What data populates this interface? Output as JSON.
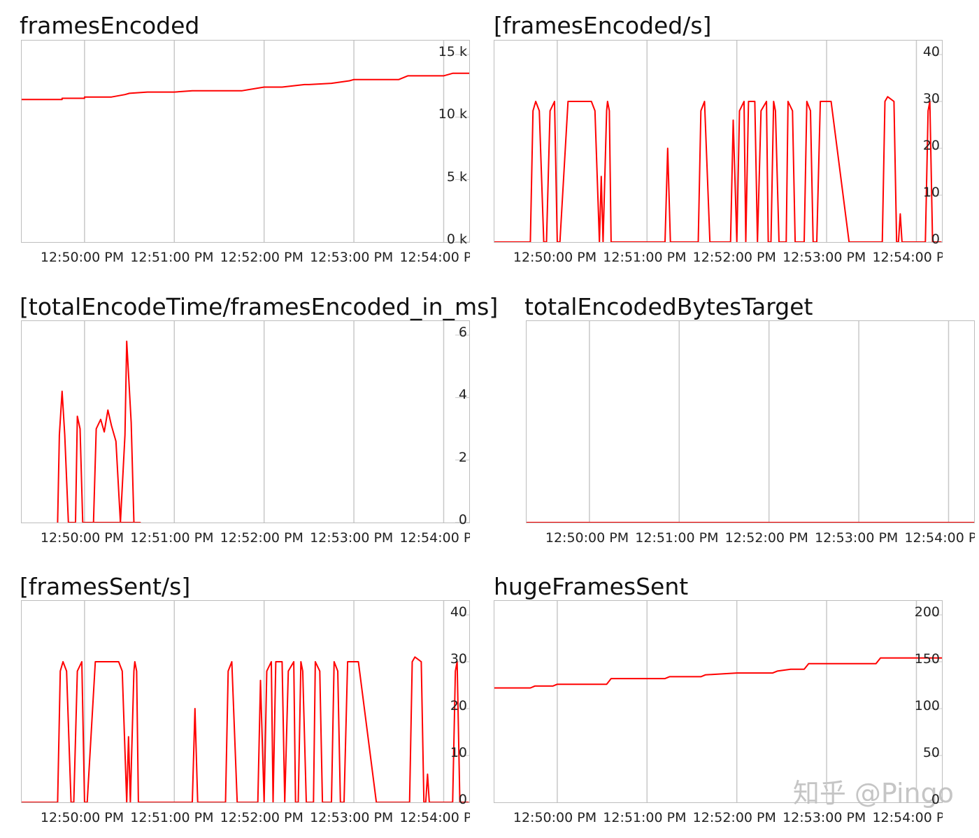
{
  "watermark": "知乎 @Pingo",
  "chart_data": [
    {
      "type": "line",
      "title": "framesEncoded",
      "xticks": [
        "12:50:00 PM",
        "12:51:00 PM",
        "12:52:00 PM",
        "12:53:00 PM",
        "12:54:00 P"
      ],
      "yticks": [
        "15 k",
        "10 k",
        "5 k",
        "0 k"
      ],
      "ytick_values": [
        15000,
        10000,
        5000,
        0
      ],
      "ylim": [
        0,
        15000
      ],
      "color": "#ff0000",
      "series": [
        {
          "x": [
            -0.7,
            -0.25,
            -0.25,
            0.0,
            0.0,
            0.3,
            0.45,
            0.5,
            0.7,
            1.0,
            1.2,
            1.25,
            1.75,
            2.0,
            2.2,
            2.45,
            2.5,
            2.75,
            2.95,
            3.0,
            3.5,
            3.6,
            4.0,
            4.1,
            4.3
          ],
          "values": [
            11400,
            11400,
            11500,
            11500,
            11600,
            11600,
            11800,
            11900,
            12000,
            12000,
            12100,
            12100,
            12100,
            12400,
            12400,
            12600,
            12600,
            12700,
            12900,
            13000,
            13000,
            13300,
            13300,
            13500,
            13500
          ]
        }
      ]
    },
    {
      "type": "line",
      "title": "[framesEncoded/s]",
      "xticks": [
        "12:50:00 PM",
        "12:51:00 PM",
        "12:52:00 PM",
        "12:53:00 PM",
        "12:54:00 P"
      ],
      "yticks": [
        "40",
        "30",
        "20",
        "10",
        "0"
      ],
      "ytick_values": [
        40,
        30,
        20,
        10,
        0
      ],
      "ylim": [
        0,
        40
      ],
      "color": "#ff0000",
      "series": [
        {
          "x": [
            -0.7,
            -0.3,
            -0.27,
            -0.24,
            -0.2,
            -0.15,
            -0.12,
            -0.08,
            -0.03,
            0.0,
            0.03,
            0.12,
            0.15,
            0.38,
            0.42,
            0.47,
            0.49,
            0.51,
            0.55,
            0.56,
            0.58,
            0.6,
            0.63,
            1.2,
            1.23,
            1.26,
            1.3,
            1.57,
            1.6,
            1.64,
            1.7,
            1.93,
            1.96,
            2.0,
            2.03,
            2.08,
            2.1,
            2.13,
            2.2,
            2.23,
            2.27,
            2.33,
            2.35,
            2.38,
            2.41,
            2.43,
            2.47,
            2.55,
            2.57,
            2.62,
            2.65,
            2.75,
            2.78,
            2.82,
            2.85,
            2.89,
            2.93,
            3.0,
            3.05,
            3.25,
            3.3,
            3.62,
            3.65,
            3.68,
            3.75,
            3.78,
            3.8,
            3.82,
            3.84,
            3.88,
            4.0,
            4.1,
            4.13,
            4.15,
            4.18,
            4.25,
            4.28
          ],
          "values": [
            0,
            0,
            28,
            30,
            28,
            0,
            0,
            28,
            30,
            0,
            0,
            30,
            30,
            30,
            28,
            0,
            14,
            0,
            28,
            30,
            28,
            0,
            0,
            0,
            20,
            0,
            0,
            0,
            28,
            30,
            0,
            0,
            26,
            0,
            28,
            30,
            0,
            30,
            30,
            0,
            28,
            30,
            0,
            0,
            30,
            28,
            0,
            0,
            30,
            28,
            0,
            0,
            30,
            28,
            0,
            0,
            30,
            30,
            30,
            0,
            0,
            0,
            30,
            31,
            30,
            0,
            0,
            6,
            0,
            0,
            0,
            0,
            28,
            30,
            0,
            0,
            0
          ]
        }
      ]
    },
    {
      "type": "line",
      "title": "[totalEncodeTime/framesEncoded_in_ms]",
      "xticks": [
        "12:50:00 PM",
        "12:51:00 PM",
        "12:52:00 PM",
        "12:53:00 PM",
        "12:54:00 P"
      ],
      "yticks": [
        "6",
        "4",
        "2",
        "0"
      ],
      "ytick_values": [
        6,
        4,
        2,
        0
      ],
      "ylim": [
        0,
        6
      ],
      "color": "#ff0000",
      "series": [
        {
          "x": [
            -0.3,
            -0.28,
            -0.25,
            -0.22,
            -0.18,
            -0.1,
            -0.08,
            -0.05,
            -0.02,
            0.1,
            0.13,
            0.18,
            0.22,
            0.26,
            0.3,
            0.35,
            0.4,
            0.45,
            0.47,
            0.52,
            0.55,
            0.58,
            0.62,
            0.0,
            0.0
          ],
          "values": [
            0,
            2.8,
            4.2,
            2.8,
            0,
            0,
            3.4,
            3.0,
            0,
            0,
            3.0,
            3.3,
            2.9,
            3.6,
            3.1,
            2.6,
            0,
            2.8,
            5.8,
            3.2,
            0,
            0,
            0,
            0,
            0
          ]
        }
      ]
    },
    {
      "type": "line",
      "title": "totalEncodedBytesTarget",
      "xticks": [
        "12:50:00 PM",
        "12:51:00 PM",
        "12:52:00 PM",
        "12:53:00 PM",
        "12:54:00 P"
      ],
      "yticks": [],
      "ytick_values": [],
      "ylim": [
        0,
        1
      ],
      "color": "#ff0000",
      "series": [
        {
          "x": [
            -0.7,
            4.3
          ],
          "values": [
            0,
            0
          ]
        }
      ]
    },
    {
      "type": "line",
      "title": "[framesSent/s]",
      "xticks": [
        "12:50:00 PM",
        "12:51:00 PM",
        "12:52:00 PM",
        "12:53:00 PM",
        "12:54:00 P"
      ],
      "yticks": [
        "40",
        "30",
        "20",
        "10",
        "0"
      ],
      "ytick_values": [
        40,
        30,
        20,
        10,
        0
      ],
      "ylim": [
        0,
        40
      ],
      "color": "#ff0000",
      "series": [
        {
          "x": [
            -0.7,
            -0.3,
            -0.27,
            -0.24,
            -0.2,
            -0.15,
            -0.12,
            -0.08,
            -0.03,
            0.0,
            0.03,
            0.12,
            0.15,
            0.38,
            0.42,
            0.47,
            0.49,
            0.51,
            0.55,
            0.56,
            0.58,
            0.6,
            0.63,
            1.2,
            1.23,
            1.26,
            1.3,
            1.57,
            1.6,
            1.64,
            1.7,
            1.93,
            1.96,
            2.0,
            2.03,
            2.08,
            2.1,
            2.13,
            2.2,
            2.23,
            2.27,
            2.33,
            2.35,
            2.38,
            2.41,
            2.43,
            2.47,
            2.55,
            2.57,
            2.62,
            2.65,
            2.75,
            2.78,
            2.82,
            2.85,
            2.89,
            2.93,
            3.0,
            3.05,
            3.25,
            3.3,
            3.62,
            3.65,
            3.68,
            3.75,
            3.78,
            3.8,
            3.82,
            3.84,
            3.88,
            4.0,
            4.1,
            4.13,
            4.15,
            4.18,
            4.25,
            4.28
          ],
          "values": [
            0,
            0,
            28,
            30,
            28,
            0,
            0,
            28,
            30,
            0,
            0,
            30,
            30,
            30,
            28,
            0,
            14,
            0,
            28,
            30,
            28,
            0,
            0,
            0,
            20,
            0,
            0,
            0,
            28,
            30,
            0,
            0,
            26,
            0,
            28,
            30,
            0,
            30,
            30,
            0,
            28,
            30,
            0,
            0,
            30,
            28,
            0,
            0,
            30,
            28,
            0,
            0,
            30,
            28,
            0,
            0,
            30,
            30,
            30,
            0,
            0,
            0,
            30,
            31,
            30,
            0,
            0,
            6,
            0,
            0,
            0,
            0,
            28,
            30,
            0,
            0,
            0
          ]
        }
      ]
    },
    {
      "type": "line",
      "title": "hugeFramesSent",
      "xticks": [
        "12:50:00 PM",
        "12:51:00 PM",
        "12:52:00 PM",
        "12:53:00 PM",
        "12:54:00 P"
      ],
      "yticks": [
        "200",
        "150",
        "100",
        "50",
        "0"
      ],
      "ytick_values": [
        200,
        150,
        100,
        50,
        0
      ],
      "ylim": [
        0,
        200
      ],
      "color": "#ff0000",
      "series": [
        {
          "x": [
            -0.7,
            -0.3,
            -0.25,
            -0.05,
            0.0,
            0.3,
            0.55,
            0.6,
            1.0,
            1.2,
            1.25,
            1.5,
            1.6,
            1.65,
            2.0,
            2.4,
            2.45,
            2.6,
            2.75,
            2.8,
            3.0,
            3.3,
            3.45,
            3.55,
            3.6,
            4.3
          ],
          "values": [
            122,
            122,
            124,
            124,
            126,
            126,
            126,
            132,
            132,
            132,
            134,
            134,
            134,
            136,
            138,
            138,
            140,
            142,
            142,
            148,
            148,
            148,
            148,
            148,
            154,
            154
          ]
        }
      ]
    }
  ]
}
